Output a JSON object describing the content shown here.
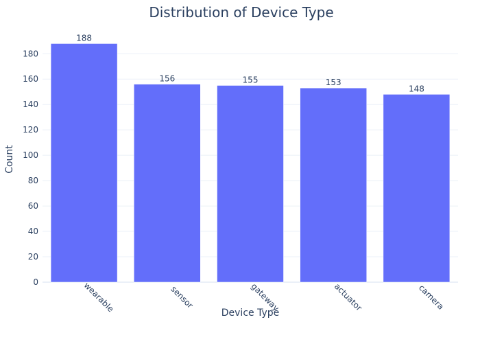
{
  "chart_data": {
    "type": "bar",
    "title": "Distribution of Device Type",
    "xlabel": "Device Type",
    "ylabel": "Count",
    "categories": [
      "wearable",
      "sensor",
      "gateway",
      "actuator",
      "camera"
    ],
    "values": [
      188,
      156,
      155,
      153,
      148
    ],
    "value_labels": [
      "188",
      "156",
      "155",
      "153",
      "148"
    ],
    "ylim": [
      0,
      198
    ],
    "yticks": [
      0,
      20,
      40,
      60,
      80,
      100,
      120,
      140,
      160,
      180
    ],
    "ytick_labels": [
      "0",
      "20",
      "40",
      "60",
      "80",
      "100",
      "120",
      "140",
      "160",
      "180"
    ],
    "grid": true,
    "legend": "none",
    "xtick_rotation_deg": 45
  },
  "colors": {
    "bar": "#636efa",
    "bar_outline": "#ffffff",
    "text": "#2a3f5f",
    "grid": "#ebf0f8",
    "background": "#ffffff"
  }
}
